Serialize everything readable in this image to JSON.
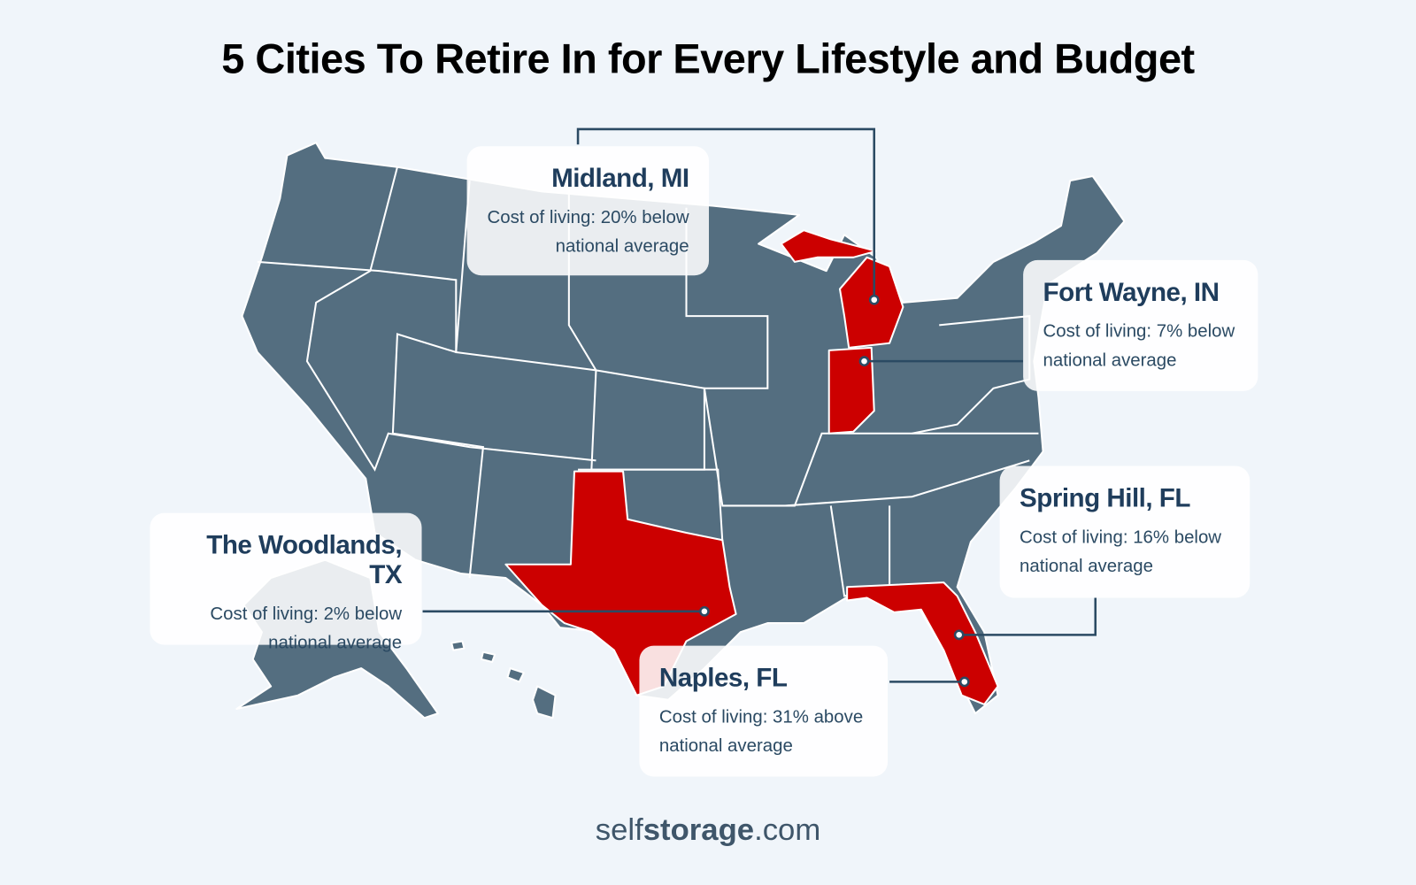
{
  "header": {
    "title": "5 Cities To Retire In for Every Lifestyle and Budget"
  },
  "cities": [
    {
      "name": "Midland, MI",
      "description": "Cost of living: 20% below national average"
    },
    {
      "name": "Fort Wayne, IN",
      "description": "Cost of living: 7% below national average"
    },
    {
      "name": "Spring Hill, FL",
      "description": "Cost of living: 16% below national average"
    },
    {
      "name": "The Woodlands, TX",
      "description": "Cost of living: 2% below national average"
    },
    {
      "name": "Naples, FL",
      "description": "Cost of living: 31% above national average"
    }
  ],
  "footer": {
    "logo": {
      "prefix": "self",
      "brand": "storage",
      "suffix": ".com"
    }
  }
}
